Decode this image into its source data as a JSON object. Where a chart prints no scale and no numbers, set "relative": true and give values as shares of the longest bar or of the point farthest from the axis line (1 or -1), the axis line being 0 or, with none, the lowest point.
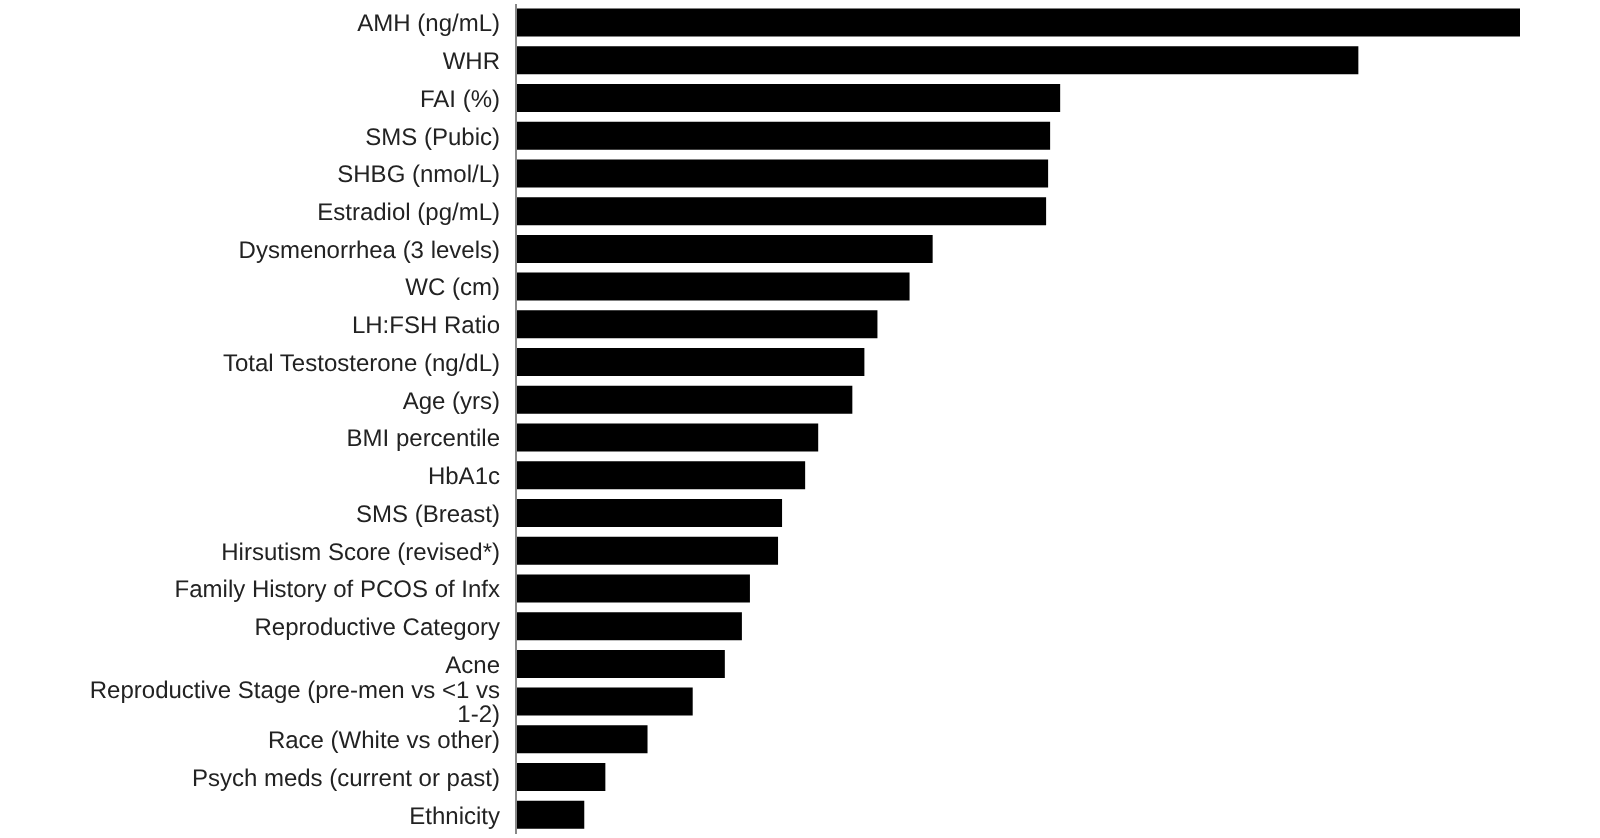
{
  "chart_data": {
    "type": "bar",
    "orientation": "horizontal",
    "relative": true,
    "color": "#000000",
    "categories": [
      "AMH (ng/mL)",
      "WHR",
      "FAI (%)",
      "SMS (Pubic)",
      "SHBG (nmol/L)",
      "Estradiol (pg/mL)",
      "Dysmenorrhea (3 levels)",
      "WC (cm)",
      "LH:FSH Ratio",
      "Total Testosterone (ng/dL)",
      "Age (yrs)",
      "BMI percentile",
      "HbA1c",
      "SMS (Breast)",
      "Hirsutism Score (revised*)",
      "Family History of PCOS of Infx",
      "Reproductive Category",
      "Acne",
      "Reproductive Stage (pre-men vs <1 vs 1-2)",
      "Race (White vs other)",
      "Psych meds (current or past)",
      "Ethnicity"
    ],
    "values": [
      1,
      0.839,
      0.542,
      0.532,
      0.53,
      0.528,
      0.415,
      0.392,
      0.36,
      0.347,
      0.335,
      0.301,
      0.288,
      0.265,
      0.261,
      0.233,
      0.225,
      0.208,
      0.176,
      0.131,
      0.089,
      0.068
    ]
  }
}
